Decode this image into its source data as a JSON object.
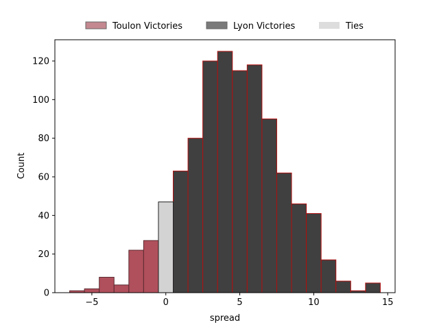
{
  "chart_data": {
    "type": "bar",
    "title": "",
    "xlabel": "spread",
    "ylabel": "Count",
    "xlim": [
      -7.5,
      15.5
    ],
    "ylim": [
      0,
      131
    ],
    "xticks": [
      -5,
      0,
      5,
      10,
      15
    ],
    "xtick_labels": [
      "−5",
      "0",
      "5",
      "10",
      "15"
    ],
    "yticks": [
      0,
      20,
      40,
      60,
      80,
      100,
      120
    ],
    "ytick_labels": [
      "0",
      "20",
      "40",
      "60",
      "80",
      "100",
      "120"
    ],
    "grid": false,
    "legend_position": "top-center, above plot",
    "bin_width": 1,
    "series": [
      {
        "name": "Toulon Victories",
        "color": "#b0505c",
        "edge_color": "#5a2a30",
        "legend_color": "#c48890",
        "x": [
          -6,
          -5,
          -4,
          -3,
          -2,
          -1
        ],
        "values": [
          1,
          2,
          8,
          4,
          22,
          27
        ]
      },
      {
        "name": "Lyon Victories",
        "color": "#404040",
        "edge_color": "#b01010",
        "legend_color": "#7a7a7a",
        "x": [
          1,
          2,
          3,
          4,
          5,
          6,
          7,
          8,
          9,
          10,
          11,
          12,
          13,
          14
        ],
        "values": [
          63,
          80,
          120,
          125,
          115,
          118,
          90,
          62,
          46,
          41,
          17,
          6,
          1,
          5
        ]
      },
      {
        "name": "Ties",
        "color": "#d3d3d3",
        "edge_color": "#222222",
        "legend_color": "#dddddd",
        "x": [
          0
        ],
        "values": [
          47
        ]
      }
    ]
  }
}
